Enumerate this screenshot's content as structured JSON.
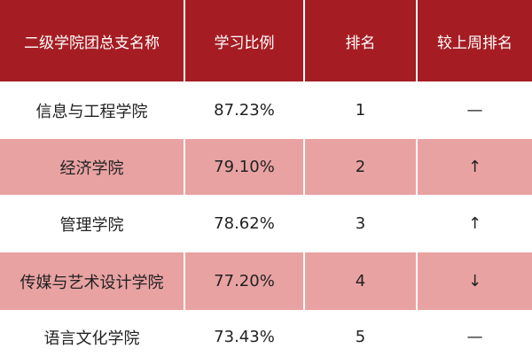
{
  "table": {
    "header": [
      "二级学院团总支名称",
      "学习比例",
      "排名",
      "较上周排名"
    ],
    "rows": [
      [
        "信息与工程学院",
        "87.23%",
        "1",
        "—"
      ],
      [
        "经济学院",
        "79.10%",
        "2",
        "↑"
      ],
      [
        "管理学院",
        "78.62%",
        "3",
        "↑"
      ],
      [
        "传媒与艺术设计学院",
        "77.20%",
        "4",
        "↓"
      ],
      [
        "语言文化学院",
        "73.43%",
        "5",
        "—"
      ]
    ]
  }
}
